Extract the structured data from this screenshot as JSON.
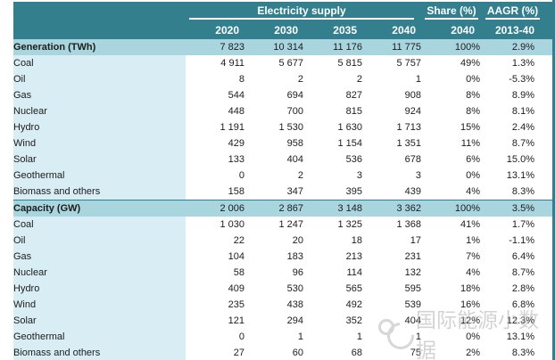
{
  "chart_data": {
    "type": "table",
    "title": "Electricity supply",
    "header": {
      "supply_group": "Electricity supply",
      "share_group": "Share (%)",
      "aagr_group": "AAGR (%)"
    },
    "columns": [
      "2020",
      "2030",
      "2035",
      "2040",
      "2040",
      "2013-40"
    ],
    "units": {
      "generation": "TWh",
      "capacity": "GW"
    },
    "rows": [
      {
        "label": "Generation (TWh)",
        "type": "section",
        "values": [
          "7 823",
          "10 314",
          "11 176",
          "11 775",
          "100%",
          "2.9%"
        ]
      },
      {
        "label": "Coal",
        "type": "data",
        "values": [
          "4 911",
          "5 677",
          "5 815",
          "5 757",
          "49%",
          "1.3%"
        ]
      },
      {
        "label": "Oil",
        "type": "data",
        "values": [
          "8",
          "2",
          "2",
          "1",
          "0%",
          "-5.3%"
        ]
      },
      {
        "label": "Gas",
        "type": "data",
        "values": [
          "544",
          "694",
          "827",
          "908",
          "8%",
          "8.9%"
        ]
      },
      {
        "label": "Nuclear",
        "type": "data",
        "values": [
          "448",
          "700",
          "815",
          "924",
          "8%",
          "8.1%"
        ]
      },
      {
        "label": "Hydro",
        "type": "data",
        "values": [
          "1 191",
          "1 530",
          "1 630",
          "1 713",
          "15%",
          "2.4%"
        ]
      },
      {
        "label": "Wind",
        "type": "data",
        "values": [
          "429",
          "958",
          "1 154",
          "1 351",
          "11%",
          "8.7%"
        ]
      },
      {
        "label": "Solar",
        "type": "data",
        "values": [
          "133",
          "404",
          "536",
          "678",
          "6%",
          "15.0%"
        ]
      },
      {
        "label": "Geothermal",
        "type": "data",
        "values": [
          "0",
          "2",
          "3",
          "3",
          "0%",
          "13.1%"
        ]
      },
      {
        "label": "Biomass and others",
        "type": "data",
        "values": [
          "158",
          "347",
          "395",
          "439",
          "4%",
          "8.3%"
        ]
      },
      {
        "label": "Capacity (GW)",
        "type": "section",
        "values": [
          "2 006",
          "2 867",
          "3 148",
          "3 362",
          "100%",
          "3.5%"
        ]
      },
      {
        "label": "Coal",
        "type": "data",
        "values": [
          "1 030",
          "1 247",
          "1 325",
          "1 368",
          "41%",
          "1.7%"
        ]
      },
      {
        "label": "Oil",
        "type": "data",
        "values": [
          "22",
          "20",
          "18",
          "17",
          "1%",
          "-1.1%"
        ]
      },
      {
        "label": "Gas",
        "type": "data",
        "values": [
          "104",
          "183",
          "213",
          "231",
          "7%",
          "6.4%"
        ]
      },
      {
        "label": "Nuclear",
        "type": "data",
        "values": [
          "58",
          "96",
          "114",
          "132",
          "4%",
          "8.7%"
        ]
      },
      {
        "label": "Hydro",
        "type": "data",
        "values": [
          "409",
          "530",
          "565",
          "595",
          "18%",
          "2.8%"
        ]
      },
      {
        "label": "Wind",
        "type": "data",
        "values": [
          "235",
          "438",
          "492",
          "539",
          "16%",
          "6.8%"
        ]
      },
      {
        "label": "Solar",
        "type": "data",
        "values": [
          "121",
          "294",
          "352",
          "404",
          "12%",
          "12.3%"
        ]
      },
      {
        "label": "Geothermal",
        "type": "data",
        "values": [
          "0",
          "1",
          "1",
          "1",
          "0%",
          "13.1%"
        ]
      },
      {
        "label": "Biomass and others",
        "type": "data",
        "values": [
          "27",
          "60",
          "68",
          "75",
          "2%",
          "8.3%"
        ]
      }
    ],
    "layout": {
      "grid": false,
      "legend": "none"
    },
    "colors": {
      "header_teal": "#337f8e",
      "section_row": "#a9d5df",
      "label_column": "#d9edf4",
      "border_teal": "#2f7f8e"
    }
  },
  "watermark": {
    "text": "国际能源小数据",
    "logo": "swirl-logo",
    "color": "#b0b0b0"
  }
}
